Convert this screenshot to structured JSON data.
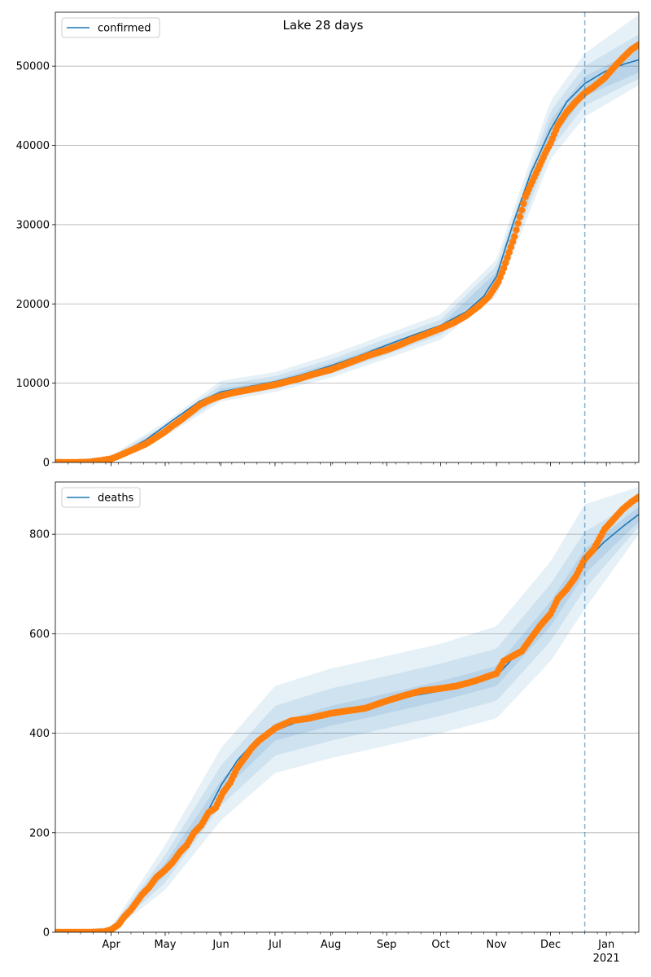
{
  "title": "Lake 28 days",
  "colors": {
    "model_line": "#1f77b4",
    "observed": "#ff7f0e",
    "band": "#1f77b4",
    "grid": "#b0b0b0",
    "forecast_line": "#1f77b4"
  },
  "x_axis": {
    "start": "2020-03-01",
    "end": "2021-01-19",
    "month_labels": [
      {
        "date": "2020-04-01",
        "label": "Apr"
      },
      {
        "date": "2020-05-01",
        "label": "May"
      },
      {
        "date": "2020-06-01",
        "label": "Jun"
      },
      {
        "date": "2020-07-01",
        "label": "Jul"
      },
      {
        "date": "2020-08-01",
        "label": "Aug"
      },
      {
        "date": "2020-09-01",
        "label": "Sep"
      },
      {
        "date": "2020-10-01",
        "label": "Oct"
      },
      {
        "date": "2020-11-01",
        "label": "Nov"
      },
      {
        "date": "2020-12-01",
        "label": "Dec"
      },
      {
        "date": "2021-01-01",
        "label": "Jan"
      }
    ],
    "year_label": {
      "date": "2021-01-01",
      "label": "2021"
    },
    "forecast_start": "2020-12-20"
  },
  "chart_data": [
    {
      "type": "line",
      "legend": "confirmed",
      "legend_position": "upper-left",
      "grid": "horizontal",
      "ylim": [
        0,
        56800
      ],
      "yticks": [
        0,
        10000,
        20000,
        30000,
        40000,
        50000
      ],
      "series": [
        {
          "name": "confirmed",
          "kind": "model",
          "x": [
            "2020-03-01",
            "2020-03-15",
            "2020-03-25",
            "2020-04-05",
            "2020-04-20",
            "2020-05-05",
            "2020-05-20",
            "2020-06-01",
            "2020-06-15",
            "2020-07-01",
            "2020-07-15",
            "2020-08-01",
            "2020-08-15",
            "2020-09-01",
            "2020-09-15",
            "2020-10-01",
            "2020-10-15",
            "2020-10-25",
            "2020-11-01",
            "2020-11-10",
            "2020-11-20",
            "2020-12-01",
            "2020-12-10",
            "2020-12-20",
            "2020-12-31",
            "2021-01-10",
            "2021-01-19"
          ],
          "y": [
            0,
            0,
            200,
            1000,
            2800,
            5300,
            7700,
            8900,
            9500,
            10200,
            11000,
            12200,
            13300,
            14800,
            16000,
            17300,
            19000,
            21000,
            23500,
            30000,
            36500,
            42000,
            45500,
            47800,
            49300,
            50200,
            50800
          ]
        },
        {
          "kind": "observed",
          "x": [
            "2020-03-01",
            "2020-03-10",
            "2020-03-20",
            "2020-03-25",
            "2020-04-01",
            "2020-04-05",
            "2020-04-10",
            "2020-04-15",
            "2020-04-20",
            "2020-04-25",
            "2020-05-01",
            "2020-05-05",
            "2020-05-10",
            "2020-05-15",
            "2020-05-20",
            "2020-05-25",
            "2020-06-01",
            "2020-06-08",
            "2020-06-15",
            "2020-06-22",
            "2020-07-01",
            "2020-07-08",
            "2020-07-15",
            "2020-07-22",
            "2020-08-01",
            "2020-08-08",
            "2020-08-15",
            "2020-08-22",
            "2020-09-01",
            "2020-09-08",
            "2020-09-15",
            "2020-09-22",
            "2020-10-01",
            "2020-10-08",
            "2020-10-15",
            "2020-10-22",
            "2020-10-28",
            "2020-11-02",
            "2020-11-05",
            "2020-11-08",
            "2020-11-11",
            "2020-11-14",
            "2020-11-17",
            "2020-11-20",
            "2020-11-24",
            "2020-11-28",
            "2020-12-01",
            "2020-12-05",
            "2020-12-10",
            "2020-12-15",
            "2020-12-20",
            "2020-12-25",
            "2020-12-31",
            "2021-01-05",
            "2021-01-10",
            "2021-01-15",
            "2021-01-19"
          ],
          "y": [
            0,
            0,
            50,
            200,
            450,
            800,
            1300,
            1800,
            2300,
            3000,
            3900,
            4600,
            5400,
            6300,
            7200,
            7800,
            8400,
            8800,
            9100,
            9400,
            9800,
            10200,
            10600,
            11100,
            11700,
            12300,
            12900,
            13500,
            14200,
            14800,
            15500,
            16100,
            16900,
            17600,
            18500,
            19700,
            21000,
            22800,
            24500,
            26500,
            28500,
            31000,
            33500,
            35000,
            37000,
            39000,
            40300,
            42500,
            44200,
            45500,
            46600,
            47400,
            48500,
            49800,
            51000,
            52100,
            52700
          ]
        }
      ],
      "bands": [
        {
          "level": "inner",
          "x": [
            "2020-03-01",
            "2020-04-01",
            "2020-05-01",
            "2020-06-01",
            "2020-07-01",
            "2020-08-01",
            "2020-09-01",
            "2020-10-01",
            "2020-11-01",
            "2020-12-01",
            "2020-12-20",
            "2021-01-19"
          ],
          "lower": [
            0,
            400,
            3900,
            8500,
            9800,
            11700,
            14100,
            16600,
            22500,
            40500,
            46200,
            49200
          ],
          "upper": [
            0,
            600,
            4300,
            9300,
            10400,
            12500,
            15000,
            17400,
            24000,
            43200,
            48700,
            52200
          ]
        },
        {
          "level": "middle",
          "x": [
            "2020-03-01",
            "2020-04-01",
            "2020-05-01",
            "2020-06-01",
            "2020-07-01",
            "2020-08-01",
            "2020-09-01",
            "2020-10-01",
            "2020-11-01",
            "2020-12-01",
            "2020-12-20",
            "2021-01-19"
          ],
          "lower": [
            0,
            300,
            3600,
            8100,
            9300,
            11200,
            13600,
            16100,
            21800,
            39500,
            45000,
            48400
          ],
          "upper": [
            0,
            750,
            4700,
            9800,
            10900,
            13000,
            15600,
            18000,
            24800,
            44300,
            50000,
            54000
          ]
        },
        {
          "level": "outer",
          "x": [
            "2020-03-01",
            "2020-04-01",
            "2020-05-01",
            "2020-06-01",
            "2020-07-01",
            "2020-08-01",
            "2020-09-01",
            "2020-10-01",
            "2020-11-01",
            "2020-12-01",
            "2020-12-20",
            "2021-01-19"
          ],
          "lower": [
            0,
            200,
            3300,
            7700,
            8900,
            10700,
            13100,
            15500,
            21000,
            38300,
            43600,
            47600
          ],
          "upper": [
            0,
            900,
            5100,
            10300,
            11400,
            13600,
            16200,
            18700,
            25600,
            45600,
            51600,
            56500
          ]
        }
      ]
    },
    {
      "type": "line",
      "legend": "deaths",
      "legend_position": "upper-left",
      "grid": "horizontal",
      "ylim": [
        0,
        905
      ],
      "yticks": [
        0,
        200,
        400,
        600,
        800
      ],
      "series": [
        {
          "name": "deaths",
          "kind": "model",
          "x": [
            "2020-03-01",
            "2020-03-20",
            "2020-03-28",
            "2020-04-05",
            "2020-04-15",
            "2020-04-25",
            "2020-05-05",
            "2020-05-15",
            "2020-05-25",
            "2020-06-01",
            "2020-06-10",
            "2020-06-20",
            "2020-07-01",
            "2020-07-15",
            "2020-08-01",
            "2020-08-15",
            "2020-09-01",
            "2020-09-15",
            "2020-10-01",
            "2020-10-15",
            "2020-11-01",
            "2020-11-15",
            "2020-12-01",
            "2020-12-10",
            "2020-12-20",
            "2020-12-31",
            "2021-01-10",
            "2021-01-19"
          ],
          "y": [
            0,
            0,
            2,
            20,
            60,
            100,
            140,
            190,
            245,
            295,
            345,
            385,
            405,
            425,
            435,
            445,
            460,
            475,
            485,
            495,
            515,
            570,
            640,
            690,
            745,
            785,
            815,
            840
          ]
        },
        {
          "kind": "observed",
          "x": [
            "2020-03-01",
            "2020-03-10",
            "2020-03-20",
            "2020-03-28",
            "2020-04-01",
            "2020-04-05",
            "2020-04-08",
            "2020-04-12",
            "2020-04-15",
            "2020-04-18",
            "2020-04-22",
            "2020-04-26",
            "2020-05-01",
            "2020-05-05",
            "2020-05-09",
            "2020-05-13",
            "2020-05-17",
            "2020-05-21",
            "2020-05-25",
            "2020-05-29",
            "2020-06-02",
            "2020-06-06",
            "2020-06-10",
            "2020-06-14",
            "2020-06-18",
            "2020-06-22",
            "2020-07-01",
            "2020-07-10",
            "2020-07-20",
            "2020-08-01",
            "2020-08-10",
            "2020-08-20",
            "2020-09-01",
            "2020-09-10",
            "2020-09-20",
            "2020-10-01",
            "2020-10-10",
            "2020-10-20",
            "2020-11-01",
            "2020-11-05",
            "2020-11-10",
            "2020-11-15",
            "2020-11-20",
            "2020-11-25",
            "2020-12-01",
            "2020-12-05",
            "2020-12-10",
            "2020-12-15",
            "2020-12-20",
            "2020-12-25",
            "2020-12-31",
            "2021-01-05",
            "2021-01-10",
            "2021-01-15",
            "2021-01-19"
          ],
          "y": [
            0,
            0,
            0,
            1,
            5,
            15,
            30,
            45,
            60,
            75,
            90,
            110,
            125,
            140,
            160,
            175,
            200,
            215,
            240,
            250,
            280,
            300,
            330,
            350,
            370,
            385,
            410,
            425,
            430,
            440,
            445,
            450,
            465,
            475,
            485,
            490,
            495,
            505,
            520,
            545,
            555,
            565,
            590,
            615,
            640,
            670,
            690,
            715,
            750,
            770,
            810,
            830,
            850,
            865,
            875
          ]
        }
      ],
      "bands": [
        {
          "level": "inner",
          "x": [
            "2020-03-01",
            "2020-04-01",
            "2020-05-01",
            "2020-06-01",
            "2020-07-01",
            "2020-08-01",
            "2020-09-01",
            "2020-10-01",
            "2020-11-01",
            "2020-12-01",
            "2020-12-20",
            "2021-01-19"
          ],
          "lower": [
            0,
            2,
            115,
            280,
            385,
            415,
            440,
            465,
            495,
            615,
            720,
            825
          ],
          "upper": [
            0,
            6,
            140,
            305,
            420,
            455,
            480,
            505,
            535,
            665,
            770,
            855
          ]
        },
        {
          "level": "middle",
          "x": [
            "2020-03-01",
            "2020-04-01",
            "2020-05-01",
            "2020-06-01",
            "2020-07-01",
            "2020-08-01",
            "2020-09-01",
            "2020-10-01",
            "2020-11-01",
            "2020-12-01",
            "2020-12-20",
            "2021-01-19"
          ],
          "lower": [
            0,
            1,
            100,
            255,
            355,
            385,
            410,
            435,
            465,
            585,
            690,
            815
          ],
          "upper": [
            0,
            8,
            155,
            335,
            455,
            490,
            515,
            540,
            570,
            700,
            805,
            870
          ]
        },
        {
          "level": "outer",
          "x": [
            "2020-03-01",
            "2020-04-01",
            "2020-05-01",
            "2020-06-01",
            "2020-07-01",
            "2020-08-01",
            "2020-09-01",
            "2020-10-01",
            "2020-11-01",
            "2020-12-01",
            "2020-12-20",
            "2021-01-19"
          ],
          "lower": [
            0,
            0,
            85,
            225,
            320,
            350,
            375,
            400,
            430,
            545,
            650,
            800
          ],
          "upper": [
            0,
            11,
            175,
            370,
            495,
            530,
            555,
            580,
            615,
            745,
            860,
            895
          ]
        }
      ]
    }
  ]
}
